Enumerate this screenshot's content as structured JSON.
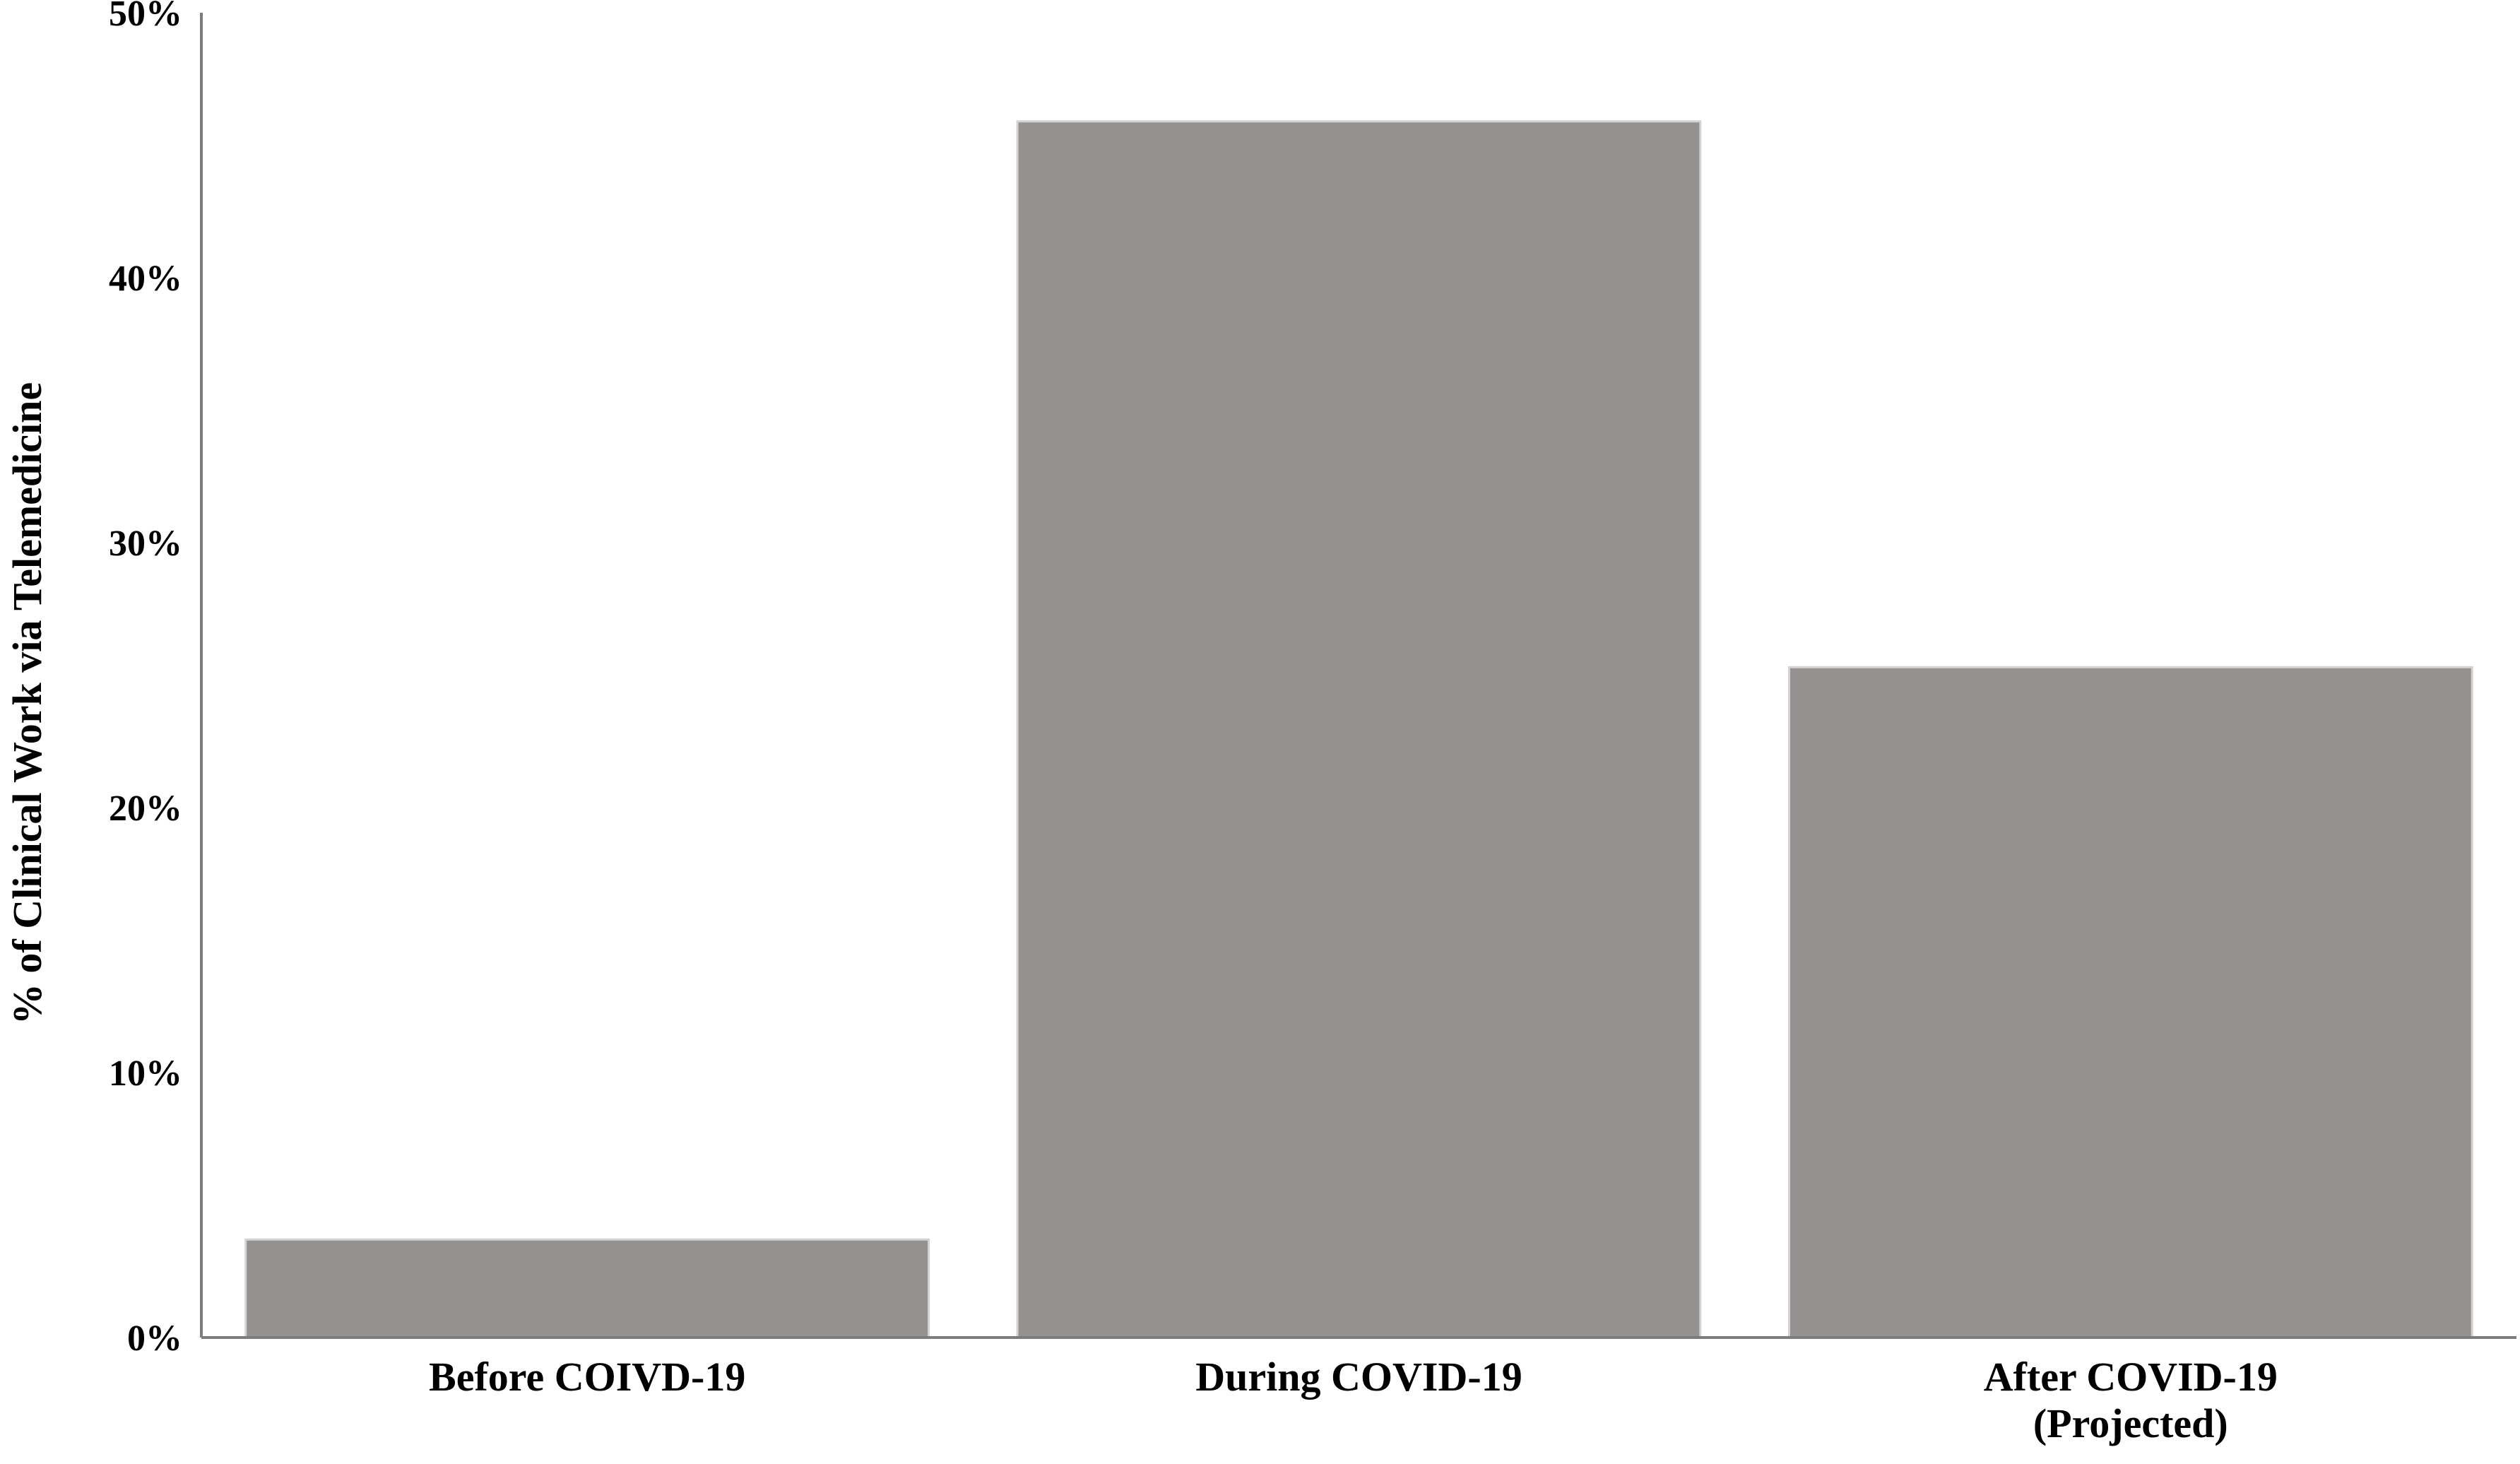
{
  "chart_data": {
    "type": "bar",
    "title": "",
    "xlabel": "",
    "ylabel": "% of Clinical Work via Telemedicine",
    "categories": [
      [
        "Before COIVD-19"
      ],
      [
        "During COVID-19"
      ],
      [
        "After COVID-19",
        "(Projected)"
      ]
    ],
    "values": [
      3.7,
      45.9,
      25.3
    ],
    "ylim": [
      0,
      50
    ],
    "yticks": [
      0,
      10,
      20,
      30,
      40,
      50
    ],
    "ytick_labels": [
      "0%",
      "10%",
      "20%",
      "30%",
      "40%",
      "50%"
    ],
    "bar_color": "#959190",
    "bar_edge_color": "#d4d2d1",
    "axis_color": "#7d7d7d",
    "grid": false,
    "legend": "none"
  }
}
